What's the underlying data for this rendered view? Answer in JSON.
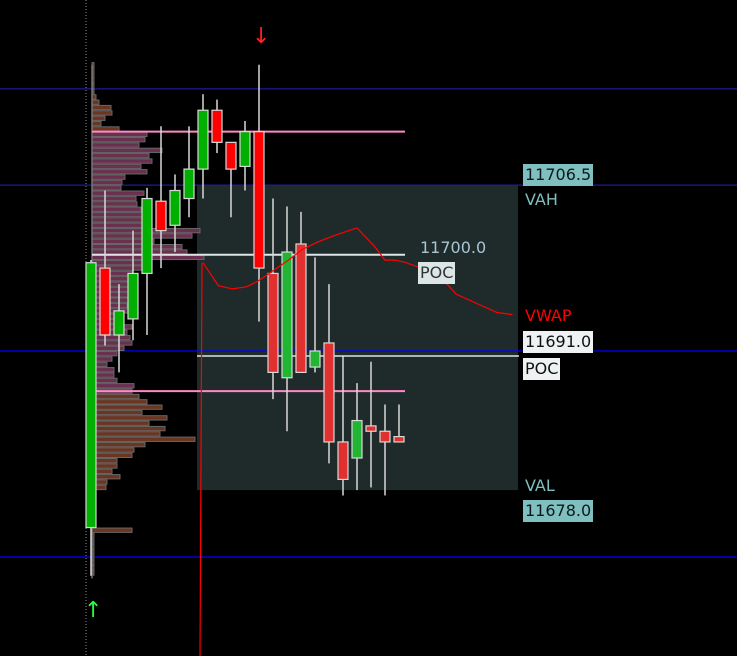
{
  "chart_data": {
    "type": "candlestick",
    "title": "",
    "price_scale": {
      "anchor_price": 11691.0,
      "points_per_row": 0.5
    },
    "candles": [
      {
        "o": 11674.5,
        "h": 11699.5,
        "l": 11670.0,
        "c": 11699.25
      },
      {
        "o": 11698.75,
        "h": 11706.0,
        "l": 11691.5,
        "c": 11692.5
      },
      {
        "o": 11692.5,
        "h": 11697.25,
        "l": 11689.0,
        "c": 11694.75
      },
      {
        "o": 11694.0,
        "h": 11702.25,
        "l": 11692.0,
        "c": 11698.25
      },
      {
        "o": 11698.25,
        "h": 11706.25,
        "l": 11692.5,
        "c": 11705.25
      },
      {
        "o": 11705.0,
        "h": 11712.0,
        "l": 11698.75,
        "c": 11702.25
      },
      {
        "o": 11702.75,
        "h": 11707.5,
        "l": 11700.25,
        "c": 11706.0
      },
      {
        "o": 11705.25,
        "h": 11712.0,
        "l": 11703.5,
        "c": 11708.0
      },
      {
        "o": 11708.0,
        "h": 11715.0,
        "l": 11705.25,
        "c": 11713.5
      },
      {
        "o": 11713.5,
        "h": 11714.5,
        "l": 11709.5,
        "c": 11710.5
      },
      {
        "o": 11710.5,
        "h": 11710.5,
        "l": 11703.5,
        "c": 11708.0
      },
      {
        "o": 11708.25,
        "h": 11712.5,
        "l": 11706.0,
        "c": 11711.5
      },
      {
        "o": 11711.5,
        "h": 11717.75,
        "l": 11693.75,
        "c": 11698.75
      },
      {
        "o": 11698.25,
        "h": 11705.25,
        "l": 11686.5,
        "c": 11689.0
      },
      {
        "o": 11688.5,
        "h": 11704.5,
        "l": 11683.5,
        "c": 11700.25
      },
      {
        "o": 11701.0,
        "h": 11704.0,
        "l": 11689.0,
        "c": 11689.0
      },
      {
        "o": 11689.5,
        "h": 11699.75,
        "l": 11689.0,
        "c": 11691.0
      },
      {
        "o": 11691.75,
        "h": 11697.25,
        "l": 11680.5,
        "c": 11682.5
      },
      {
        "o": 11682.5,
        "h": 11690.5,
        "l": 11677.5,
        "c": 11679.0
      },
      {
        "o": 11681.0,
        "h": 11688.0,
        "l": 11678.0,
        "c": 11684.5
      },
      {
        "o": 11684.0,
        "h": 11690.0,
        "l": 11678.25,
        "c": 11683.5
      },
      {
        "o": 11683.5,
        "h": 11686.0,
        "l": 11677.5,
        "c": 11682.5
      },
      {
        "o": 11683.0,
        "h": 11686.0,
        "l": 11682.5,
        "c": 11682.5
      }
    ],
    "vwap": [
      [
        8,
        11699.25
      ],
      [
        9.1,
        11697.1
      ],
      [
        10.1,
        11696.8
      ],
      [
        11.1,
        11697.0
      ],
      [
        11.9,
        11697.5
      ],
      [
        12.9,
        11698.4
      ],
      [
        14,
        11699.4
      ],
      [
        15.1,
        11700.5
      ],
      [
        16.2,
        11701.2
      ],
      [
        17.4,
        11701.8
      ],
      [
        19,
        11702.5
      ],
      [
        20.3,
        11700.7
      ],
      [
        21,
        11699.5
      ],
      [
        21.7,
        11699.5
      ],
      [
        22.4,
        11699.3
      ],
      [
        23.5,
        11698.8
      ],
      [
        24.9,
        11698.0
      ],
      [
        26.1,
        11696.3
      ],
      [
        27.8,
        11695.3
      ],
      [
        29,
        11694.6
      ],
      [
        30.1,
        11694.4
      ]
    ],
    "volume_profile": {
      "top_price": 11717.75,
      "value_area_high_price": 11711.5,
      "value_area_low_price": 11687.25,
      "poc_price": 11700.0,
      "volumes": [
        2,
        2,
        2,
        2,
        2,
        2,
        4,
        7,
        19,
        20,
        13,
        9,
        27,
        55,
        53,
        47,
        70,
        57,
        60,
        49,
        55,
        33,
        30,
        29,
        52,
        44,
        45,
        49,
        50,
        55,
        60,
        108,
        100,
        62,
        90,
        95,
        112,
        55,
        50,
        40,
        38,
        42,
        40,
        45,
        38,
        35,
        40,
        32,
        30,
        40,
        35,
        38,
        40,
        32,
        25,
        20,
        15,
        22,
        22,
        25,
        42,
        40,
        47,
        55,
        70,
        50,
        75,
        57,
        73,
        68,
        103,
        53,
        42,
        40,
        25,
        25,
        20,
        28,
        15,
        14,
        4,
        3,
        2,
        2,
        2,
        2,
        2,
        40,
        2,
        2,
        2,
        2,
        2,
        2,
        2,
        2
      ]
    },
    "value_area": {
      "vah": 11706.5,
      "val": 11678.0,
      "poc": 11691.0
    },
    "horizontal_lines": [
      {
        "price": 11715.5,
        "color": "#1c1c9c"
      },
      {
        "price": 11706.5,
        "color": "#1c1c9c"
      },
      {
        "price": 11691.0,
        "color": "#0000ff"
      },
      {
        "price": 11671.75,
        "color": "#0000ff"
      }
    ],
    "labels": {
      "vah_value": "11706.5",
      "vah_text": "VAH",
      "poc1_value": "11700.0",
      "poc1_text": "POC",
      "vwap_text": "VWAP",
      "poc2_value": "11691.0",
      "poc2_text": "POC",
      "val_text": "VAL",
      "val_value": "11678.0"
    },
    "colors": {
      "up": "#00b000",
      "down": "#ff0000",
      "up_recent": "#22b533",
      "down_recent": "#e03030",
      "profile_outside": "#6b3520",
      "profile_inside": "#6b3050",
      "value_area_fill": "#1f2b2b",
      "vwap": "#ff0000",
      "label_teal": "#7fbfbf",
      "label_light": "#e8eeee"
    },
    "markers": {
      "down_arrow": "↓",
      "up_arrow": "↑"
    }
  }
}
